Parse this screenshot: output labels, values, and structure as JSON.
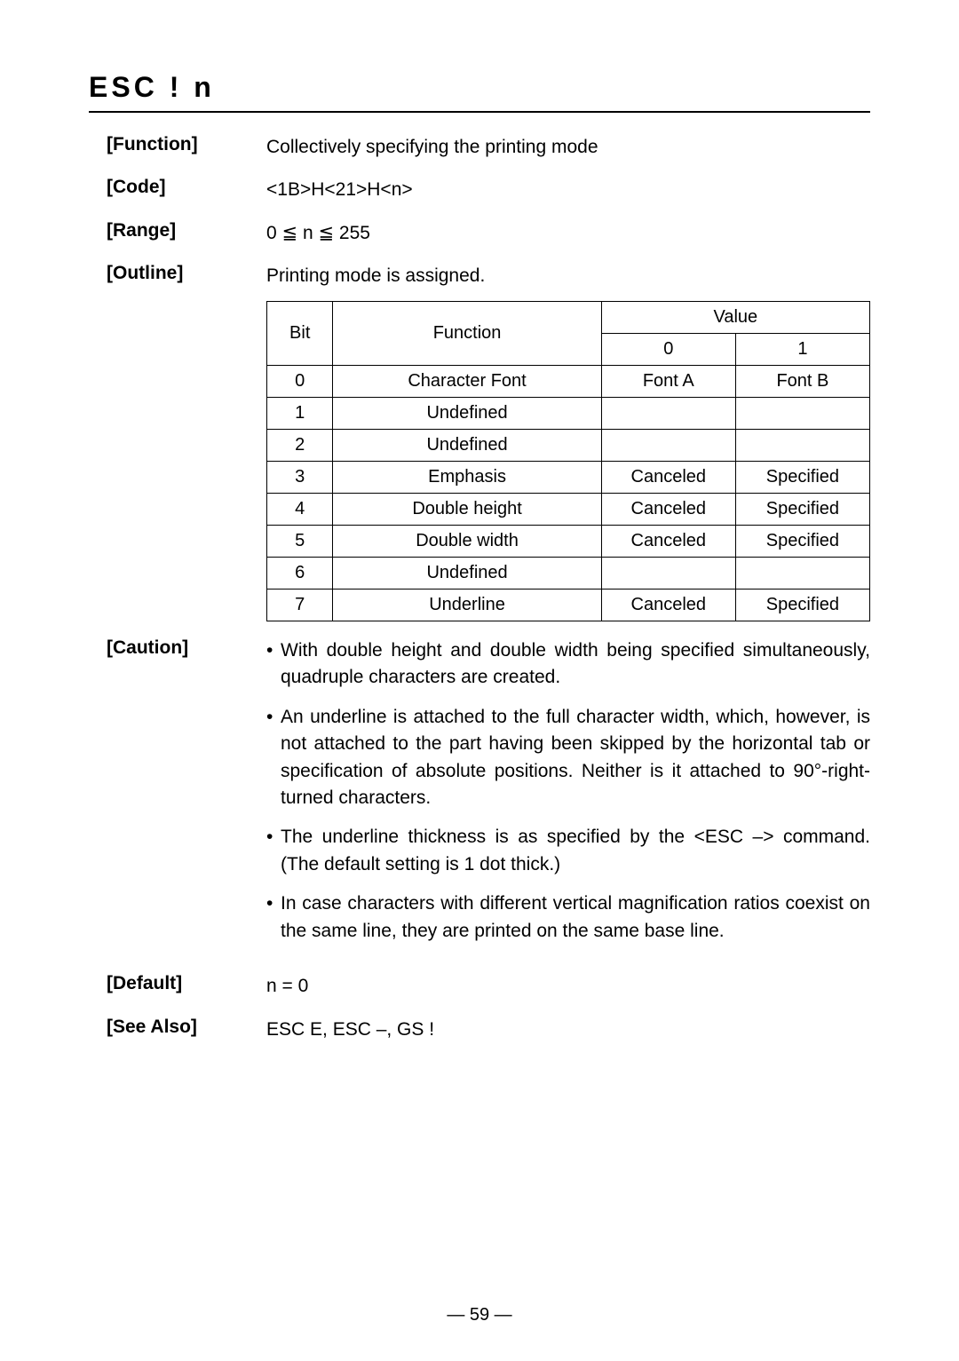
{
  "title": "ESC  !  n",
  "function": {
    "label": "[Function]",
    "text": "Collectively specifying the printing mode"
  },
  "code": {
    "label": "[Code]",
    "text": "<1B>H<21>H<n>"
  },
  "range": {
    "label": "[Range]",
    "text": "0 ≦ n ≦ 255"
  },
  "outline": {
    "label": "[Outline]",
    "text": "Printing mode is assigned."
  },
  "table": {
    "headers": {
      "bit": "Bit",
      "function": "Function",
      "value": "Value",
      "v0": "0",
      "v1": "1"
    },
    "rows": [
      {
        "bit": "0",
        "func": "Character Font",
        "v0": "Font A",
        "v1": "Font B"
      },
      {
        "bit": "1",
        "func": "Undefined",
        "v0": "",
        "v1": ""
      },
      {
        "bit": "2",
        "func": "Undefined",
        "v0": "",
        "v1": ""
      },
      {
        "bit": "3",
        "func": "Emphasis",
        "v0": "Canceled",
        "v1": "Specified"
      },
      {
        "bit": "4",
        "func": "Double height",
        "v0": "Canceled",
        "v1": "Specified"
      },
      {
        "bit": "5",
        "func": "Double width",
        "v0": "Canceled",
        "v1": "Specified"
      },
      {
        "bit": "6",
        "func": "Undefined",
        "v0": "",
        "v1": ""
      },
      {
        "bit": "7",
        "func": "Underline",
        "v0": "Canceled",
        "v1": "Specified"
      }
    ]
  },
  "caution": {
    "label": "[Caution]",
    "items": [
      "With double height and double width being specified simultaneously, quadruple characters are created.",
      "An underline is attached to the full character width, which, however, is not attached to the part having been skipped by the horizontal tab or specification of absolute positions. Neither is it attached to 90°-right-turned characters.",
      "The underline thickness is as specified by the <ESC –> command. (The default setting is 1 dot thick.)",
      "In case characters with different vertical magnification ratios coexist on the same line, they are printed on the same base line."
    ]
  },
  "default": {
    "label": "[Default]",
    "text": "n = 0"
  },
  "seealso": {
    "label": "[See Also]",
    "text": "ESC E, ESC –, GS !"
  },
  "pagenum": "— 59 —"
}
